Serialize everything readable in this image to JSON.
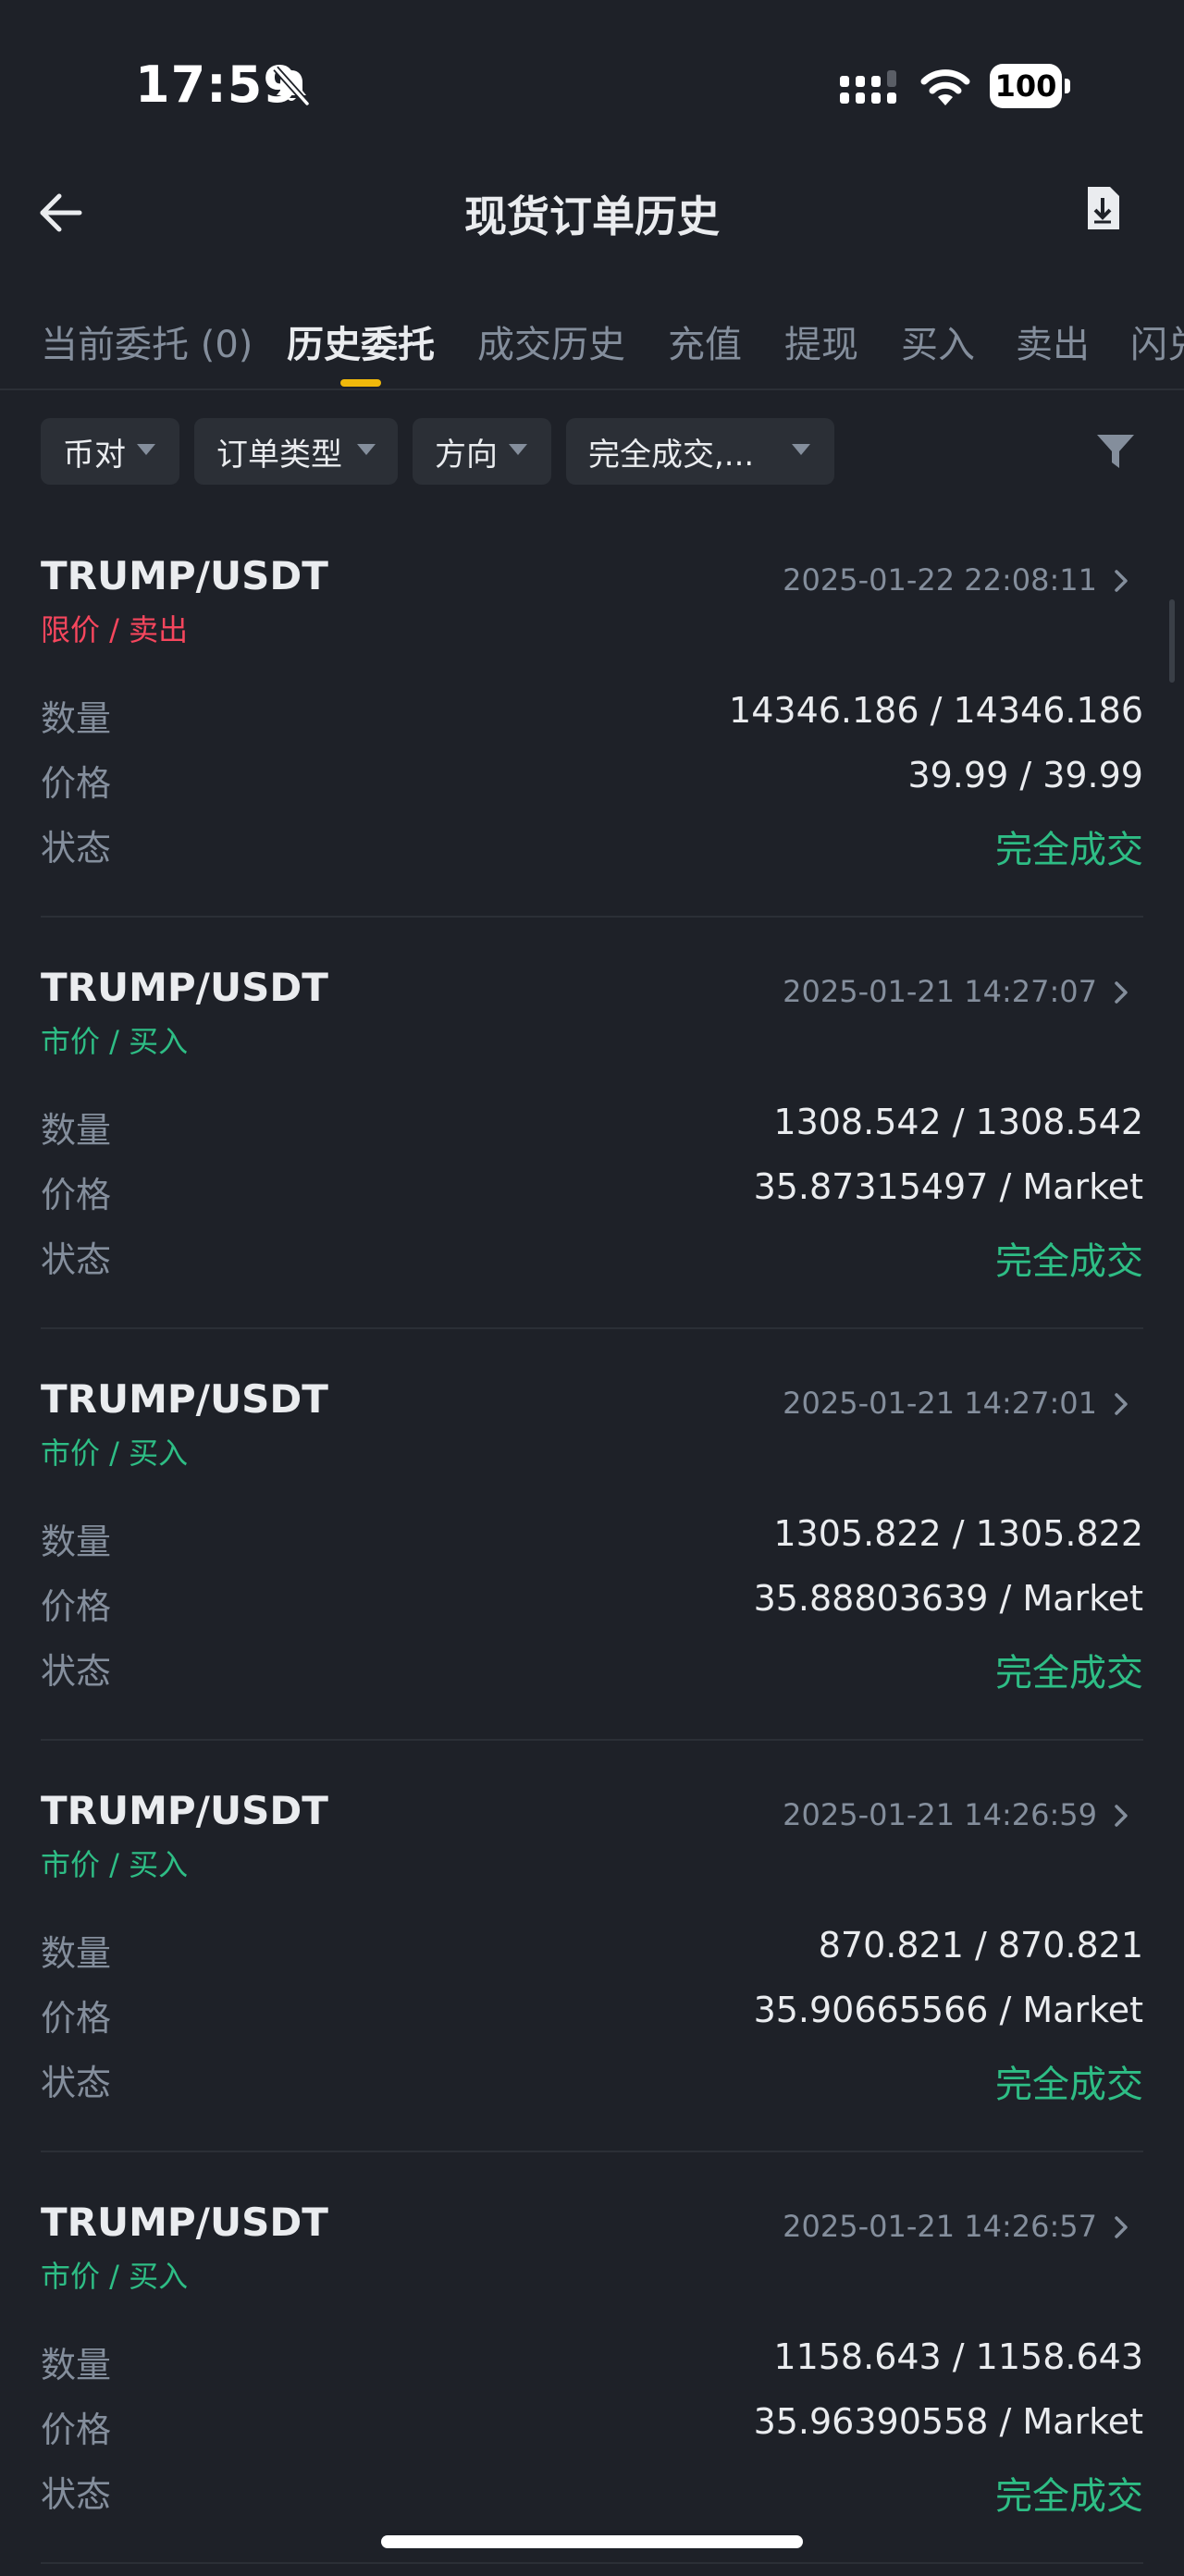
{
  "status_bar": {
    "time": "17:59",
    "battery": "100"
  },
  "header": {
    "title": "现货订单历史"
  },
  "tabs": [
    {
      "label": "当前委托 (0)"
    },
    {
      "label": "历史委托"
    },
    {
      "label": "成交历史"
    },
    {
      "label": "充值"
    },
    {
      "label": "提现"
    },
    {
      "label": "买入"
    },
    {
      "label": "卖出"
    },
    {
      "label": "闪兑"
    }
  ],
  "filters": {
    "pair": "币对",
    "order_type": "订单类型",
    "direction": "方向",
    "status": "完全成交,..."
  },
  "labels": {
    "quantity": "数量",
    "price": "价格",
    "status": "状态"
  },
  "orders": [
    {
      "pair": "TRUMP/USDT",
      "type": "限价 / 卖出",
      "side": "sell",
      "time": "2025-01-22 22:08:11",
      "quantity": "14346.186 / 14346.186",
      "price": "39.99 / 39.99",
      "status": "完全成交"
    },
    {
      "pair": "TRUMP/USDT",
      "type": "市价 / 买入",
      "side": "buy",
      "time": "2025-01-21 14:27:07",
      "quantity": "1308.542 / 1308.542",
      "price": "35.87315497 / Market",
      "status": "完全成交"
    },
    {
      "pair": "TRUMP/USDT",
      "type": "市价 / 买入",
      "side": "buy",
      "time": "2025-01-21 14:27:01",
      "quantity": "1305.822 / 1305.822",
      "price": "35.88803639 / Market",
      "status": "完全成交"
    },
    {
      "pair": "TRUMP/USDT",
      "type": "市价 / 买入",
      "side": "buy",
      "time": "2025-01-21 14:26:59",
      "quantity": "870.821 / 870.821",
      "price": "35.90665566 / Market",
      "status": "完全成交"
    },
    {
      "pair": "TRUMP/USDT",
      "type": "市价 / 买入",
      "side": "buy",
      "time": "2025-01-21 14:26:57",
      "quantity": "1158.643 / 1158.643",
      "price": "35.96390558 / Market",
      "status": "完全成交"
    }
  ],
  "colors": {
    "background": "#1e2128",
    "accent": "#f0b90b",
    "buy": "#2ebd85",
    "sell": "#f6465d",
    "muted": "#848e9c"
  }
}
